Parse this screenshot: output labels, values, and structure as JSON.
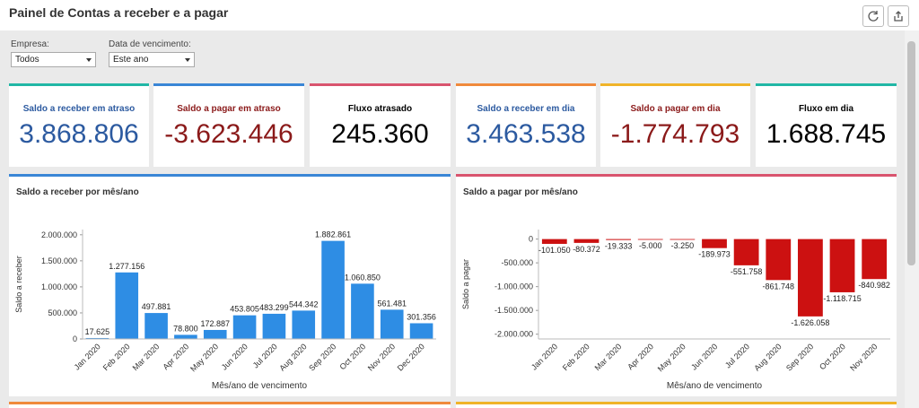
{
  "header": {
    "title": "Painel de Contas a receber e a pagar"
  },
  "filters": {
    "company": {
      "label": "Empresa:",
      "value": "Todos"
    },
    "due_date": {
      "label": "Data de vencimento:",
      "value": "Este ano"
    }
  },
  "kpis": [
    {
      "label": "Saldo a receber em atraso",
      "value": "3.868.806",
      "color": "#2c5aa0",
      "accent": "#21b7a5"
    },
    {
      "label": "Saldo a pagar em atraso",
      "value": "-3.623.446",
      "color": "#8b1a1a",
      "accent": "#3a86d6"
    },
    {
      "label": "Fluxo atrasado",
      "value": "245.360",
      "color": "#000000",
      "accent": "#d9546e"
    },
    {
      "label": "Saldo a receber em dia",
      "value": "3.463.538",
      "color": "#2c5aa0",
      "accent": "#f08a3c"
    },
    {
      "label": "Saldo a pagar em dia",
      "value": "-1.774.793",
      "color": "#8b1a1a",
      "accent": "#f0b429"
    },
    {
      "label": "Fluxo em dia",
      "value": "1.688.745",
      "color": "#000000",
      "accent": "#21b7a5"
    }
  ],
  "panels": {
    "receivable": {
      "title": "Saldo a receber por mês/ano",
      "accent": "#3a86d6"
    },
    "payable": {
      "title": "Saldo a pagar por mês/ano",
      "accent": "#d9546e"
    }
  },
  "bottom_accents": [
    "#f08a3c",
    "#f0b429"
  ],
  "chart_data": [
    {
      "type": "bar",
      "title": "Saldo a receber por mês/ano",
      "xlabel": "Mês/ano de vencimento",
      "ylabel": "Saldo a receber",
      "categories": [
        "Jan 2020",
        "Feb 2020",
        "Mar 2020",
        "Apr 2020",
        "May 2020",
        "Jun 2020",
        "Jul 2020",
        "Aug 2020",
        "Sep 2020",
        "Oct 2020",
        "Nov 2020",
        "Dec 2020"
      ],
      "values": [
        17625,
        1277156,
        497881,
        78800,
        172887,
        453805,
        483299,
        544342,
        1882861,
        1060850,
        561481,
        301356
      ],
      "value_labels": [
        "17.625",
        "1.277.156",
        "497.881",
        "78.800",
        "172.887",
        "453.805",
        "483.299",
        "544.342",
        "1.882.861",
        "1.060.850",
        "561.481",
        "301.356"
      ],
      "yticks": [
        0,
        500000,
        1000000,
        1500000,
        2000000
      ],
      "ytick_labels": [
        "0",
        "500.000",
        "1.000.000",
        "1.500.000",
        "2.000.000"
      ],
      "ylim": [
        0,
        2100000
      ],
      "color": "#2e8de4"
    },
    {
      "type": "bar",
      "title": "Saldo a pagar por mês/ano",
      "xlabel": "Mês/ano de vencimento",
      "ylabel": "Saldo a pagar",
      "categories": [
        "Jan 2020",
        "Feb 2020",
        "Mar 2020",
        "Apr 2020",
        "May 2020",
        "Jun 2020",
        "Jul 2020",
        "Aug 2020",
        "Sep 2020",
        "Oct 2020",
        "Nov 2020"
      ],
      "values": [
        -101050,
        -80372,
        -19333,
        -5000,
        -3250,
        -189973,
        -551758,
        -861748,
        -1626058,
        -1118715,
        -840982
      ],
      "value_labels": [
        "-101.050",
        "-80.372",
        "-19.333",
        "-5.000",
        "-3.250",
        "-189.973",
        "-551.758",
        "-861.748",
        "-1.626.058",
        "-1.118.715",
        "-840.982"
      ],
      "yticks": [
        0,
        -500000,
        -1000000,
        -1500000,
        -2000000
      ],
      "ytick_labels": [
        "0",
        "-500.000",
        "-1.000.000",
        "-1.500.000",
        "-2.000.000"
      ],
      "ylim": [
        -2100000,
        200000
      ],
      "color": "#cc1111"
    }
  ]
}
